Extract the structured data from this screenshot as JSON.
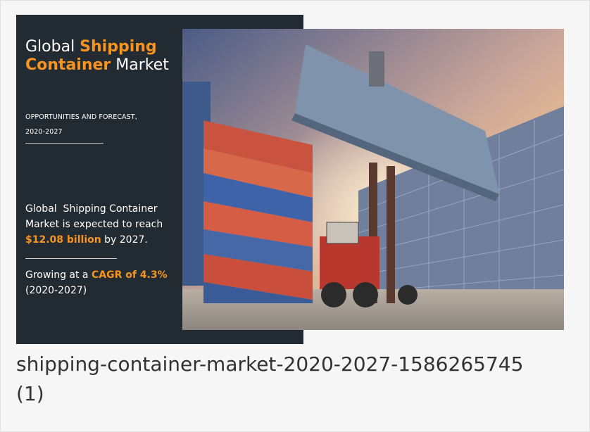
{
  "image": {
    "title": {
      "line1": [
        "Global ",
        "Shipping"
      ],
      "line2": [
        "Container",
        " Market"
      ]
    },
    "subtitle": [
      "OPPORTUNITIES AND FORECAST,",
      "2020-2027"
    ],
    "forecast": {
      "line1": "Global  Shipping Container",
      "line2": "Market is expected to reach",
      "value": "$12.08 billion",
      "suffix": " by 2027."
    },
    "growth": {
      "prefix": "Growing at a ",
      "value": "CAGR of 4.3%",
      "period": "(2020-2027)"
    }
  },
  "caption": [
    "shipping-container-market-2020-2027-1586265745",
    "(1)"
  ]
}
